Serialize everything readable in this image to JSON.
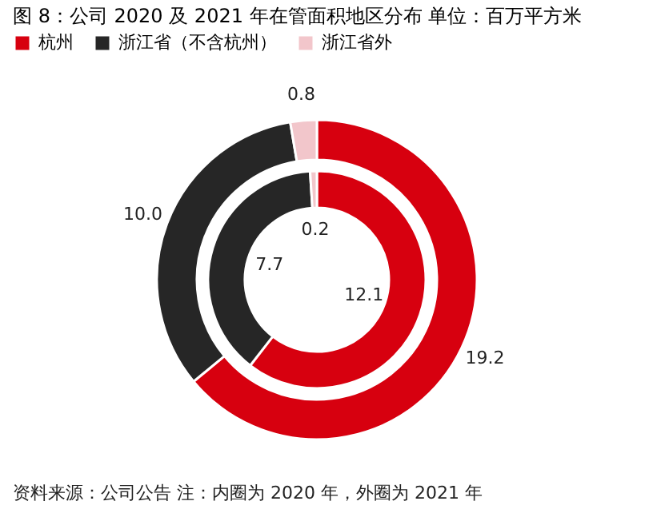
{
  "chart_data": {
    "type": "donut",
    "title": "图 8：公司 2020 及 2021 年在管面积地区分布  单位：百万平方米",
    "categories": [
      "杭州",
      "浙江省（不含杭州）",
      "浙江省外"
    ],
    "colors": [
      "#d7000f",
      "#262626",
      "#f2c6cb"
    ],
    "series": [
      {
        "values": [
          12.1,
          7.7,
          0.2
        ],
        "value_labels": [
          "12.1",
          "7.7",
          "0.2"
        ]
      },
      {
        "values": [
          19.2,
          10.0,
          0.8
        ],
        "value_labels": [
          "19.2",
          "10.0",
          "0.8"
        ]
      }
    ],
    "legend": "top",
    "annotations": [
      "资料来源：公司公告  注：内圈为 2020 年，外圈为 2021 年"
    ]
  }
}
